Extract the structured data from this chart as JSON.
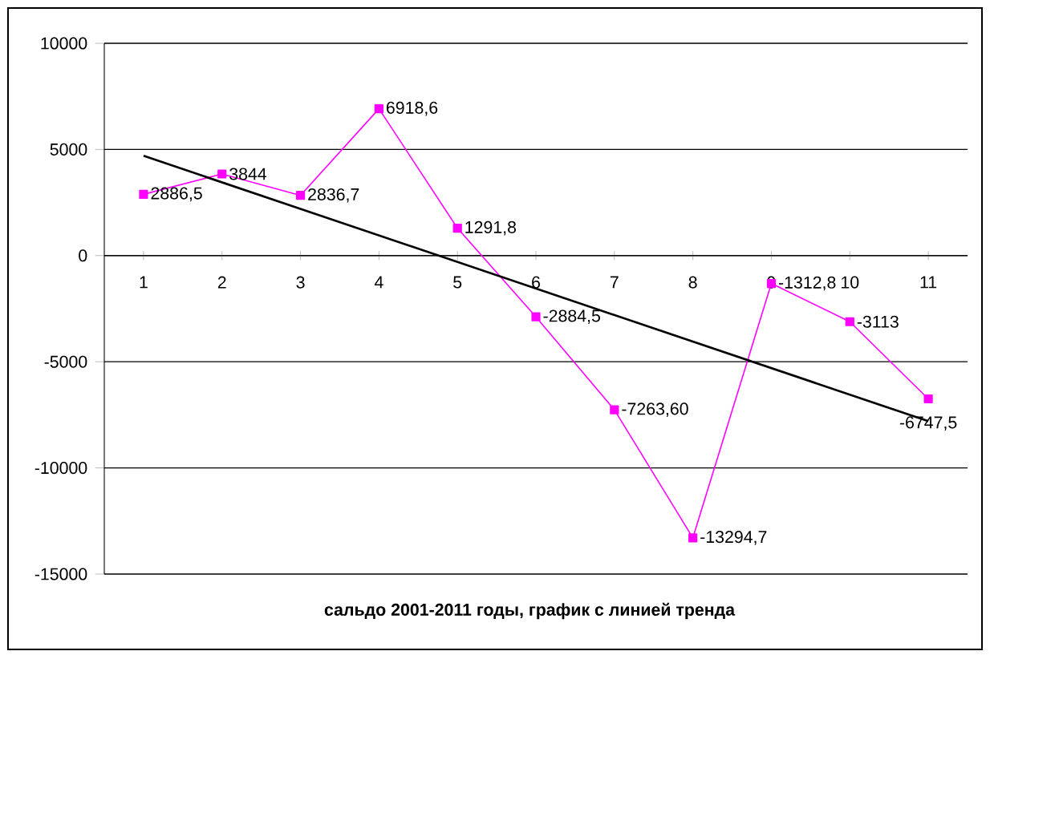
{
  "chart_data": {
    "type": "line",
    "title": "сальдо 2001-2011 годы, график с линией тренда",
    "x": [
      1,
      2,
      3,
      4,
      5,
      6,
      7,
      8,
      9,
      10,
      11
    ],
    "xlim": [
      0.5,
      11.5
    ],
    "xticks": [
      1,
      2,
      3,
      4,
      5,
      6,
      7,
      8,
      9,
      10,
      11
    ],
    "ylim": [
      -15000,
      10000
    ],
    "yticks": [
      -15000,
      -10000,
      -5000,
      0,
      5000,
      10000
    ],
    "grid": "y",
    "series": [
      {
        "color": "#ff00ff",
        "marker": "square",
        "values": [
          2886.5,
          3844,
          2836.7,
          6918.6,
          1291.8,
          -2884.5,
          -7263.6,
          -13294.7,
          -1312.8,
          -3113,
          -6747.5
        ],
        "value_labels": [
          "2886,5",
          "3844",
          "2836,7",
          "6918,6",
          "1291,8",
          "-2884,5",
          "-7263,60",
          "-13294,7",
          "-1312,8",
          "-3113",
          "-6747,5"
        ]
      },
      {
        "type": "line",
        "color": "#000000",
        "marker": "none",
        "x": [
          1,
          11
        ],
        "values": [
          4700,
          -7800
        ]
      }
    ]
  }
}
